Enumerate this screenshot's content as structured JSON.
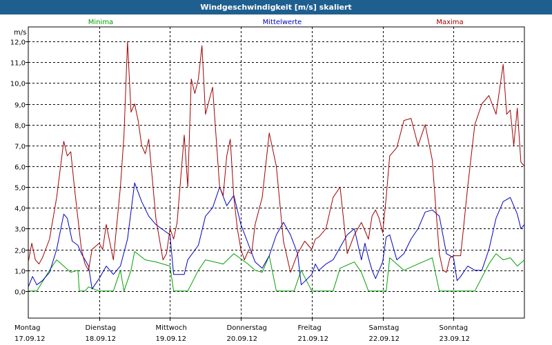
{
  "window": {
    "title": "Windgeschwindigkeit [m/s] skaliert"
  },
  "chart_data": {
    "type": "line",
    "title": "Windgeschwindigkeit [m/s] skaliert",
    "ylabel": "m/s",
    "xlabel": "",
    "ylim": [
      -1.3,
      12.7
    ],
    "xlim": [
      0,
      7
    ],
    "grid": true,
    "y_ticks": [
      0,
      1,
      2,
      3,
      4,
      5,
      6,
      7,
      8,
      9,
      10,
      11,
      12
    ],
    "y_tick_labels": [
      "0,0",
      "1,0",
      "2,0",
      "3,0",
      "4,0",
      "5,0",
      "6,0",
      "7,0",
      "8,0",
      "9,0",
      "10,0",
      "11,0",
      "12,0"
    ],
    "x_ticks": [
      {
        "x": 0,
        "day": "Montag",
        "date": "17.09.12"
      },
      {
        "x": 1,
        "day": "Dienstag",
        "date": "18.09.12"
      },
      {
        "x": 2,
        "day": "Mittwoch",
        "date": "19.09.12"
      },
      {
        "x": 3,
        "day": "Donnerstag",
        "date": "20.09.12"
      },
      {
        "x": 4,
        "day": "Freitag",
        "date": "21.09.12"
      },
      {
        "x": 5,
        "day": "Samstag",
        "date": "22.09.12"
      },
      {
        "x": 6,
        "day": "Sonntag",
        "date": "23.09.12"
      }
    ],
    "series": [
      {
        "name": "Minima",
        "color": "#00a000",
        "x": [
          0,
          0.04,
          0.09,
          0.12,
          0.3,
          0.4,
          0.5,
          0.6,
          0.7,
          0.72,
          0.76,
          0.8,
          0.85,
          1.0,
          1.2,
          1.3,
          1.35,
          1.45,
          1.5,
          1.65,
          1.8,
          2.0,
          2.05,
          2.25,
          2.4,
          2.5,
          2.75,
          2.9,
          3.1,
          3.2,
          3.3,
          3.4,
          3.5,
          3.75,
          3.85,
          4.0,
          4.05,
          4.3,
          4.4,
          4.6,
          4.7,
          4.8,
          4.85,
          5.0,
          5.05,
          5.1,
          5.3,
          5.5,
          5.7,
          5.8,
          5.85,
          6.0,
          6.05,
          6.3,
          6.5,
          6.6,
          6.7,
          6.8,
          6.9,
          7.0
        ],
        "values": [
          0,
          0,
          0,
          0,
          1.0,
          1.5,
          1.2,
          0.9,
          1.0,
          0,
          0,
          0,
          0.2,
          0,
          0,
          1.0,
          0,
          1.0,
          1.9,
          1.5,
          1.4,
          1.2,
          0,
          0,
          1.0,
          1.5,
          1.3,
          1.8,
          1.3,
          1.0,
          0.9,
          1.7,
          0,
          0,
          1.0,
          0,
          0,
          0,
          1.1,
          1.4,
          0.9,
          0,
          0,
          0,
          0,
          1.6,
          1.0,
          1.3,
          1.6,
          0,
          0,
          0,
          0,
          0,
          1.3,
          1.8,
          1.5,
          1.6,
          1.2,
          1.5
        ]
      },
      {
        "name": "Mittelwerte",
        "color": "#0000c0",
        "x": [
          0,
          0.06,
          0.12,
          0.2,
          0.3,
          0.4,
          0.5,
          0.55,
          0.62,
          0.7,
          0.75,
          0.8,
          0.85,
          0.9,
          1.0,
          1.1,
          1.2,
          1.3,
          1.4,
          1.5,
          1.6,
          1.7,
          1.8,
          2.0,
          2.05,
          2.2,
          2.25,
          2.4,
          2.5,
          2.6,
          2.7,
          2.8,
          2.9,
          3.0,
          3.1,
          3.2,
          3.3,
          3.4,
          3.5,
          3.6,
          3.7,
          3.8,
          3.85,
          4.0,
          4.05,
          4.1,
          4.2,
          4.3,
          4.4,
          4.5,
          4.6,
          4.7,
          4.75,
          4.8,
          4.85,
          4.9,
          5.0,
          5.05,
          5.1,
          5.2,
          5.3,
          5.4,
          5.5,
          5.6,
          5.7,
          5.8,
          5.9,
          6.0,
          6.05,
          6.1,
          6.2,
          6.3,
          6.4,
          6.5,
          6.6,
          6.7,
          6.8,
          6.9,
          6.95,
          7.0
        ],
        "values": [
          0.2,
          0.7,
          0.3,
          0.5,
          0.9,
          2.0,
          3.7,
          3.5,
          2.4,
          2.2,
          1.8,
          1.5,
          1.2,
          0.1,
          0.6,
          1.2,
          0.8,
          1.2,
          2.5,
          5.2,
          4.3,
          3.6,
          3.2,
          2.7,
          0.8,
          0.8,
          1.5,
          2.2,
          3.6,
          4.0,
          5.0,
          4.1,
          4.6,
          3.2,
          2.3,
          1.4,
          1.1,
          1.7,
          2.7,
          3.3,
          2.7,
          1.8,
          0.3,
          0.8,
          1.3,
          1.0,
          1.3,
          1.5,
          2.1,
          2.7,
          3.0,
          1.5,
          2.3,
          1.6,
          1.0,
          0.6,
          1.4,
          2.6,
          2.7,
          1.5,
          1.8,
          2.5,
          3.0,
          3.8,
          3.9,
          3.6,
          1.8,
          1.6,
          0.5,
          0.7,
          1.2,
          1.0,
          1.0,
          2.0,
          3.5,
          4.3,
          4.5,
          3.7,
          3.0,
          3.2
        ]
      },
      {
        "name": "Maxima",
        "color": "#a00000",
        "x": [
          0,
          0.05,
          0.1,
          0.15,
          0.2,
          0.3,
          0.4,
          0.5,
          0.55,
          0.6,
          0.65,
          0.7,
          0.75,
          0.8,
          0.85,
          0.9,
          1.0,
          1.05,
          1.1,
          1.2,
          1.3,
          1.35,
          1.4,
          1.45,
          1.5,
          1.55,
          1.6,
          1.65,
          1.7,
          1.8,
          1.9,
          1.95,
          2.0,
          2.05,
          2.1,
          2.2,
          2.25,
          2.3,
          2.35,
          2.4,
          2.45,
          2.5,
          2.6,
          2.7,
          2.75,
          2.8,
          2.85,
          2.9,
          2.95,
          3.0,
          3.05,
          3.1,
          3.15,
          3.2,
          3.3,
          3.4,
          3.5,
          3.6,
          3.7,
          3.8,
          3.85,
          3.9,
          4.0,
          4.05,
          4.1,
          4.2,
          4.3,
          4.4,
          4.5,
          4.6,
          4.7,
          4.8,
          4.85,
          4.9,
          4.95,
          5.0,
          5.05,
          5.1,
          5.2,
          5.3,
          5.4,
          5.5,
          5.6,
          5.7,
          5.75,
          5.8,
          5.85,
          5.9,
          5.95,
          6.0,
          6.05,
          6.1,
          6.2,
          6.3,
          6.4,
          6.5,
          6.6,
          6.7,
          6.75,
          6.8,
          6.85,
          6.9,
          6.95,
          7.0
        ],
        "values": [
          1.4,
          2.3,
          1.5,
          1.3,
          1.6,
          2.5,
          4.5,
          7.2,
          6.5,
          6.7,
          5.0,
          3.5,
          2.0,
          1.3,
          1.0,
          2.0,
          2.3,
          2.0,
          3.2,
          1.5,
          5.0,
          7.5,
          12.0,
          8.6,
          9.0,
          8.2,
          7.0,
          6.6,
          7.3,
          3.5,
          1.5,
          1.8,
          3.0,
          2.5,
          3.3,
          7.5,
          5.0,
          10.2,
          9.5,
          10.2,
          11.8,
          8.5,
          9.8,
          5.0,
          4.6,
          6.5,
          7.3,
          4.5,
          3.0,
          2.0,
          1.5,
          1.9,
          1.8,
          3.2,
          4.5,
          7.6,
          6.0,
          2.4,
          0.9,
          1.8,
          2.1,
          2.4,
          2.0,
          2.5,
          2.6,
          3.0,
          4.5,
          5.0,
          1.8,
          2.7,
          3.3,
          2.5,
          3.6,
          3.9,
          3.5,
          2.8,
          4.5,
          6.5,
          6.9,
          8.2,
          8.3,
          7.0,
          8.0,
          6.3,
          4.0,
          1.8,
          1.0,
          0.9,
          1.6,
          1.7,
          1.7,
          1.7,
          5.0,
          8.0,
          9.0,
          9.4,
          8.5,
          10.9,
          8.5,
          8.7,
          7.0,
          8.8,
          6.2,
          6.0
        ]
      }
    ]
  }
}
